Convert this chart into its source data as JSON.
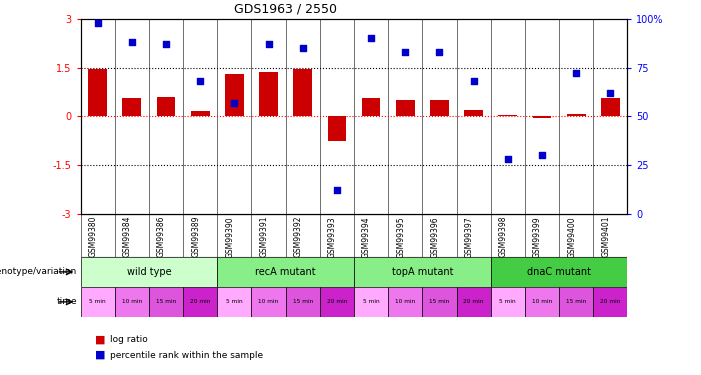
{
  "title": "GDS1963 / 2550",
  "samples": [
    "GSM99380",
    "GSM99384",
    "GSM99386",
    "GSM99389",
    "GSM99390",
    "GSM99391",
    "GSM99392",
    "GSM99393",
    "GSM99394",
    "GSM99395",
    "GSM99396",
    "GSM99397",
    "GSM99398",
    "GSM99399",
    "GSM99400",
    "GSM99401"
  ],
  "log_ratio": [
    1.45,
    0.55,
    0.6,
    0.15,
    1.3,
    1.35,
    1.45,
    -0.75,
    0.55,
    0.5,
    0.5,
    0.2,
    0.05,
    -0.05,
    0.07,
    0.55
  ],
  "percentile": [
    98,
    88,
    87,
    68,
    57,
    87,
    85,
    12,
    90,
    83,
    83,
    68,
    28,
    30,
    72,
    62
  ],
  "ylim_left": [
    -3,
    3
  ],
  "ylim_right": [
    0,
    100
  ],
  "bar_color": "#cc0000",
  "dot_color": "#0000cc",
  "bg_color": "#ffffff",
  "genotype_groups": [
    {
      "label": "wild type",
      "start": 0,
      "end": 4,
      "color": "#ccffcc"
    },
    {
      "label": "recA mutant",
      "start": 4,
      "end": 8,
      "color": "#88ee88"
    },
    {
      "label": "topA mutant",
      "start": 8,
      "end": 12,
      "color": "#88ee88"
    },
    {
      "label": "dnaC mutant",
      "start": 12,
      "end": 16,
      "color": "#44cc44"
    }
  ],
  "time_labels": [
    "5 min",
    "10 min",
    "15 min",
    "20 min",
    "5 min",
    "10 min",
    "15 min",
    "20 min",
    "5 min",
    "10 min",
    "15 min",
    "20 min",
    "5 min",
    "10 min",
    "15 min",
    "20 min"
  ],
  "time_colors": [
    "#ffaaff",
    "#ee77ee",
    "#dd55dd",
    "#cc22cc",
    "#ffaaff",
    "#ee77ee",
    "#dd55dd",
    "#cc22cc",
    "#ffaaff",
    "#ee77ee",
    "#dd55dd",
    "#cc22cc",
    "#ffaaff",
    "#ee77ee",
    "#dd55dd",
    "#cc22cc"
  ]
}
